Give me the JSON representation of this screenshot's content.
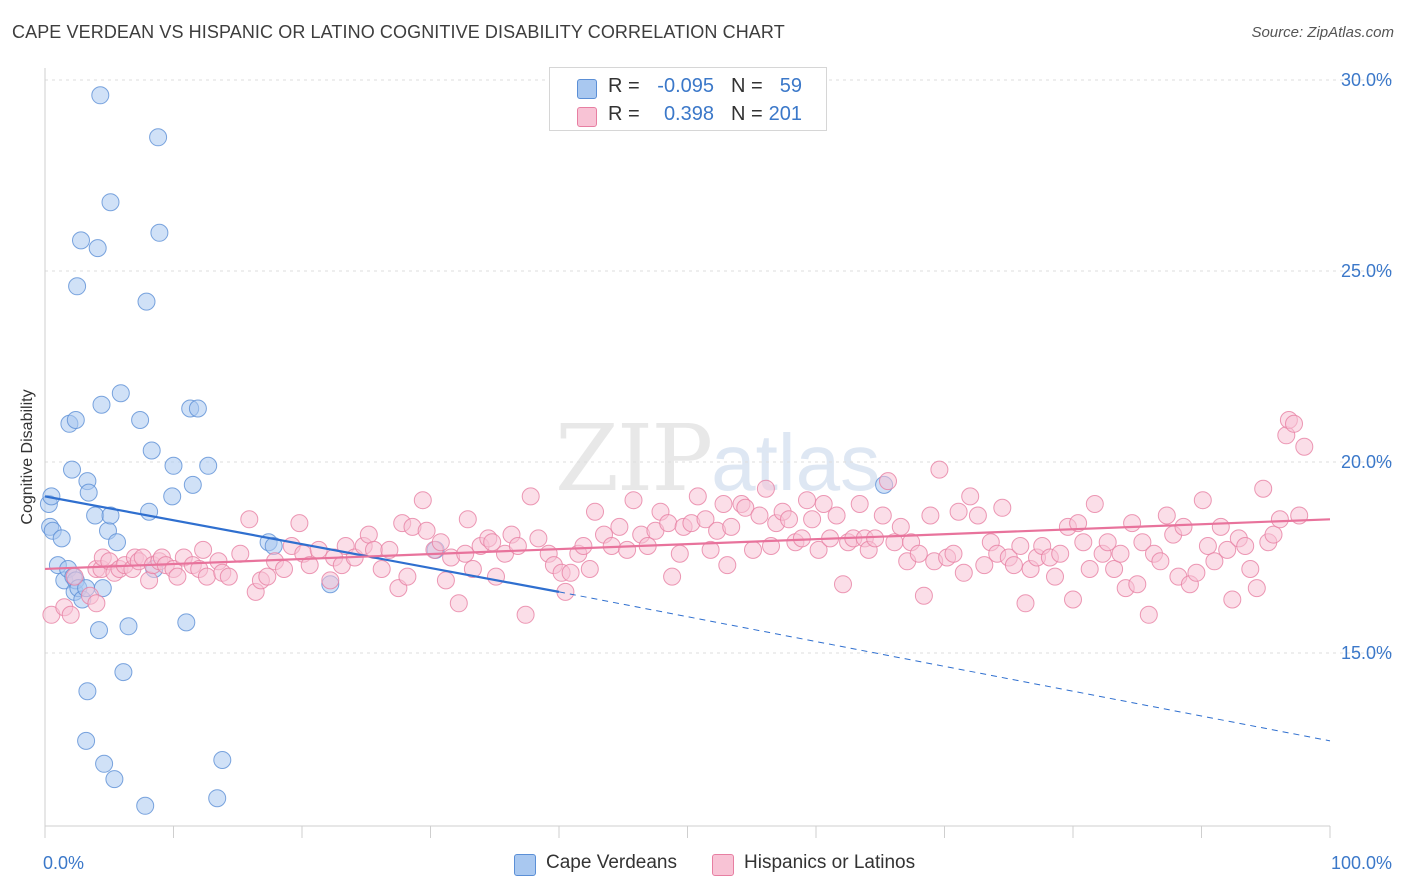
{
  "title": "CAPE VERDEAN VS HISPANIC OR LATINO COGNITIVE DISABILITY CORRELATION CHART",
  "source": "Source: ZipAtlas.com",
  "watermark": {
    "zip": "ZIP",
    "atlas": "atlas"
  },
  "legend": {
    "r_label": "R =",
    "n_label": "N =",
    "rows": [
      {
        "name": "Cape Verdeans",
        "r": "-0.095",
        "n": "59",
        "color": "#a9c8f0",
        "border": "#5b8fd6"
      },
      {
        "name": "Hispanics or Latinos",
        "r": "0.398",
        "n": "201",
        "color": "#f8c3d5",
        "border": "#e77fa2"
      }
    ]
  },
  "chart_data": {
    "type": "scatter",
    "title": "CAPE VERDEAN VS HISPANIC OR LATINO COGNITIVE DISABILITY CORRELATION CHART",
    "xlabel": "",
    "ylabel": "Cognitive Disability",
    "xlim": [
      0,
      100
    ],
    "ylim": [
      10,
      31
    ],
    "x_tick_labels": [
      {
        "value": 0,
        "label": "0.0%"
      },
      {
        "value": 100,
        "label": "100.0%"
      }
    ],
    "y_ticks": [
      {
        "value": 15,
        "label": "15.0%"
      },
      {
        "value": 20,
        "label": "20.0%"
      },
      {
        "value": 25,
        "label": "25.0%"
      },
      {
        "value": 30,
        "label": "30.0%"
      }
    ],
    "grid": "horizontal dashed",
    "series": [
      {
        "name": "Cape Verdeans",
        "color": "#a9c8f0",
        "stroke": "#5b8fd6",
        "trend": {
          "x0": 0,
          "y0": 19.1,
          "x1": 40,
          "y1": 16.6,
          "dash_to_x": 100,
          "dash_to_y": 12.7,
          "color": "#2f6fcf"
        },
        "points": [
          [
            0.3,
            18.9
          ],
          [
            0.4,
            18.3
          ],
          [
            0.5,
            19.1
          ],
          [
            0.6,
            18.2
          ],
          [
            1.0,
            17.3
          ],
          [
            1.3,
            18.0
          ],
          [
            1.5,
            16.9
          ],
          [
            1.8,
            17.2
          ],
          [
            1.9,
            21.0
          ],
          [
            2.1,
            19.8
          ],
          [
            2.2,
            17.0
          ],
          [
            2.5,
            24.6
          ],
          [
            2.3,
            16.6
          ],
          [
            2.4,
            16.9
          ],
          [
            2.4,
            21.1
          ],
          [
            2.6,
            16.7
          ],
          [
            2.8,
            25.8
          ],
          [
            2.9,
            16.4
          ],
          [
            3.3,
            19.5
          ],
          [
            3.4,
            19.2
          ],
          [
            3.2,
            16.7
          ],
          [
            3.3,
            14.0
          ],
          [
            3.2,
            12.7
          ],
          [
            3.9,
            18.6
          ],
          [
            4.1,
            25.6
          ],
          [
            4.2,
            15.6
          ],
          [
            4.3,
            29.6
          ],
          [
            4.4,
            21.5
          ],
          [
            4.5,
            16.7
          ],
          [
            4.6,
            12.1
          ],
          [
            4.9,
            18.2
          ],
          [
            5.1,
            18.6
          ],
          [
            5.1,
            26.8
          ],
          [
            5.4,
            11.7
          ],
          [
            5.6,
            17.9
          ],
          [
            5.9,
            21.8
          ],
          [
            6.1,
            14.5
          ],
          [
            6.5,
            15.7
          ],
          [
            7.4,
            21.1
          ],
          [
            7.8,
            11.0
          ],
          [
            7.9,
            24.2
          ],
          [
            8.1,
            18.7
          ],
          [
            8.3,
            20.3
          ],
          [
            8.5,
            17.2
          ],
          [
            8.8,
            28.5
          ],
          [
            8.9,
            26.0
          ],
          [
            9.9,
            19.1
          ],
          [
            10.0,
            19.9
          ],
          [
            11.0,
            15.8
          ],
          [
            11.3,
            21.4
          ],
          [
            11.5,
            19.4
          ],
          [
            11.9,
            21.4
          ],
          [
            12.7,
            19.9
          ],
          [
            13.4,
            11.2
          ],
          [
            13.8,
            12.2
          ],
          [
            17.4,
            17.9
          ],
          [
            17.8,
            17.8
          ],
          [
            22.2,
            16.8
          ],
          [
            30.4,
            17.7
          ],
          [
            65.3,
            19.4
          ]
        ]
      },
      {
        "name": "Hispanics or Latinos",
        "color": "#f8c3d5",
        "stroke": "#e77fa2",
        "trend": {
          "x0": 0,
          "y0": 17.2,
          "x1": 100,
          "y1": 18.5,
          "color": "#e8739c"
        },
        "points": [
          [
            0.5,
            16.0
          ],
          [
            1.5,
            16.2
          ],
          [
            2.0,
            16.0
          ],
          [
            2.3,
            17.0
          ],
          [
            3.5,
            16.5
          ],
          [
            4.0,
            16.3
          ],
          [
            4.0,
            17.2
          ],
          [
            4.4,
            17.2
          ],
          [
            4.5,
            17.5
          ],
          [
            5.0,
            17.4
          ],
          [
            5.4,
            17.1
          ],
          [
            5.8,
            17.2
          ],
          [
            6.2,
            17.3
          ],
          [
            6.8,
            17.2
          ],
          [
            7.0,
            17.5
          ],
          [
            7.3,
            17.4
          ],
          [
            7.6,
            17.5
          ],
          [
            8.1,
            16.9
          ],
          [
            8.4,
            17.3
          ],
          [
            8.9,
            17.4
          ],
          [
            9.1,
            17.5
          ],
          [
            9.4,
            17.3
          ],
          [
            10.0,
            17.2
          ],
          [
            10.3,
            17.0
          ],
          [
            10.8,
            17.5
          ],
          [
            11.5,
            17.3
          ],
          [
            12.0,
            17.2
          ],
          [
            12.3,
            17.7
          ],
          [
            12.6,
            17.0
          ],
          [
            13.5,
            17.4
          ],
          [
            13.8,
            17.1
          ],
          [
            14.3,
            17.0
          ],
          [
            15.2,
            17.6
          ],
          [
            15.9,
            18.5
          ],
          [
            16.4,
            16.6
          ],
          [
            16.8,
            16.9
          ],
          [
            17.3,
            17.0
          ],
          [
            17.9,
            17.4
          ],
          [
            18.6,
            17.2
          ],
          [
            19.2,
            17.8
          ],
          [
            19.8,
            18.4
          ],
          [
            20.1,
            17.6
          ],
          [
            20.6,
            17.3
          ],
          [
            21.3,
            17.7
          ],
          [
            22.2,
            16.9
          ],
          [
            22.5,
            17.5
          ],
          [
            23.1,
            17.3
          ],
          [
            23.4,
            17.8
          ],
          [
            24.1,
            17.5
          ],
          [
            24.8,
            17.8
          ],
          [
            25.2,
            18.1
          ],
          [
            25.6,
            17.7
          ],
          [
            26.2,
            17.2
          ],
          [
            26.8,
            17.7
          ],
          [
            27.5,
            16.7
          ],
          [
            27.8,
            18.4
          ],
          [
            28.2,
            17.0
          ],
          [
            28.6,
            18.3
          ],
          [
            29.4,
            19.0
          ],
          [
            29.7,
            18.2
          ],
          [
            30.3,
            17.7
          ],
          [
            30.8,
            17.9
          ],
          [
            31.2,
            16.9
          ],
          [
            31.6,
            17.5
          ],
          [
            32.2,
            16.3
          ],
          [
            32.7,
            17.6
          ],
          [
            32.9,
            18.5
          ],
          [
            33.3,
            17.2
          ],
          [
            33.9,
            17.8
          ],
          [
            34.5,
            18.0
          ],
          [
            34.8,
            17.9
          ],
          [
            35.1,
            17.0
          ],
          [
            35.8,
            17.6
          ],
          [
            36.3,
            18.1
          ],
          [
            36.8,
            17.8
          ],
          [
            37.4,
            16.0
          ],
          [
            37.8,
            19.1
          ],
          [
            38.4,
            18.0
          ],
          [
            39.2,
            17.6
          ],
          [
            39.6,
            17.3
          ],
          [
            40.2,
            17.1
          ],
          [
            40.5,
            16.6
          ],
          [
            40.9,
            17.1
          ],
          [
            41.5,
            17.6
          ],
          [
            41.9,
            17.8
          ],
          [
            42.4,
            17.2
          ],
          [
            42.8,
            18.7
          ],
          [
            43.5,
            18.1
          ],
          [
            44.1,
            17.8
          ],
          [
            44.7,
            18.3
          ],
          [
            45.3,
            17.7
          ],
          [
            45.8,
            19.0
          ],
          [
            46.4,
            18.1
          ],
          [
            46.9,
            17.8
          ],
          [
            47.5,
            18.2
          ],
          [
            47.9,
            18.7
          ],
          [
            48.5,
            18.4
          ],
          [
            48.8,
            17.0
          ],
          [
            49.4,
            17.6
          ],
          [
            49.7,
            18.3
          ],
          [
            50.3,
            18.4
          ],
          [
            50.8,
            19.1
          ],
          [
            51.4,
            18.5
          ],
          [
            51.8,
            17.7
          ],
          [
            52.3,
            18.2
          ],
          [
            52.8,
            18.9
          ],
          [
            53.1,
            17.3
          ],
          [
            53.4,
            18.3
          ],
          [
            54.2,
            18.9
          ],
          [
            54.5,
            18.8
          ],
          [
            55.1,
            17.7
          ],
          [
            55.6,
            18.6
          ],
          [
            56.1,
            19.3
          ],
          [
            56.5,
            17.8
          ],
          [
            56.9,
            18.4
          ],
          [
            57.4,
            18.7
          ],
          [
            57.9,
            18.5
          ],
          [
            58.4,
            17.9
          ],
          [
            58.9,
            18.0
          ],
          [
            59.3,
            19.0
          ],
          [
            59.7,
            18.5
          ],
          [
            60.2,
            17.7
          ],
          [
            60.6,
            18.9
          ],
          [
            61.1,
            18.0
          ],
          [
            61.6,
            18.6
          ],
          [
            62.1,
            16.8
          ],
          [
            62.5,
            17.9
          ],
          [
            62.9,
            18.0
          ],
          [
            63.4,
            18.9
          ],
          [
            63.8,
            18.0
          ],
          [
            64.1,
            17.7
          ],
          [
            64.6,
            18.0
          ],
          [
            65.2,
            18.6
          ],
          [
            65.6,
            19.5
          ],
          [
            66.1,
            17.9
          ],
          [
            66.6,
            18.3
          ],
          [
            67.1,
            17.4
          ],
          [
            67.4,
            17.9
          ],
          [
            68.0,
            17.6
          ],
          [
            68.4,
            16.5
          ],
          [
            68.9,
            18.6
          ],
          [
            69.2,
            17.4
          ],
          [
            69.6,
            19.8
          ],
          [
            70.2,
            17.5
          ],
          [
            70.7,
            17.6
          ],
          [
            71.1,
            18.7
          ],
          [
            71.5,
            17.1
          ],
          [
            72.0,
            19.1
          ],
          [
            72.6,
            18.6
          ],
          [
            73.1,
            17.3
          ],
          [
            73.6,
            17.9
          ],
          [
            74.1,
            17.6
          ],
          [
            74.5,
            18.8
          ],
          [
            75.0,
            17.5
          ],
          [
            75.4,
            17.3
          ],
          [
            75.9,
            17.8
          ],
          [
            76.3,
            16.3
          ],
          [
            76.7,
            17.2
          ],
          [
            77.2,
            17.5
          ],
          [
            77.6,
            17.8
          ],
          [
            78.2,
            17.5
          ],
          [
            78.6,
            17.0
          ],
          [
            79.0,
            17.6
          ],
          [
            79.6,
            18.3
          ],
          [
            80.0,
            16.4
          ],
          [
            80.4,
            18.4
          ],
          [
            80.8,
            17.9
          ],
          [
            81.3,
            17.2
          ],
          [
            81.7,
            18.9
          ],
          [
            82.3,
            17.6
          ],
          [
            82.7,
            17.9
          ],
          [
            83.2,
            17.2
          ],
          [
            83.7,
            17.6
          ],
          [
            84.1,
            16.7
          ],
          [
            84.6,
            18.4
          ],
          [
            85.0,
            16.8
          ],
          [
            85.4,
            17.9
          ],
          [
            85.9,
            16.0
          ],
          [
            86.3,
            17.6
          ],
          [
            86.8,
            17.4
          ],
          [
            87.3,
            18.6
          ],
          [
            87.8,
            18.1
          ],
          [
            88.2,
            17.0
          ],
          [
            88.6,
            18.3
          ],
          [
            89.1,
            16.8
          ],
          [
            89.6,
            17.1
          ],
          [
            90.1,
            19.0
          ],
          [
            90.5,
            17.8
          ],
          [
            91.0,
            17.4
          ],
          [
            91.5,
            18.3
          ],
          [
            92.0,
            17.7
          ],
          [
            92.4,
            16.4
          ],
          [
            92.9,
            18.0
          ],
          [
            93.4,
            17.8
          ],
          [
            93.8,
            17.2
          ],
          [
            94.3,
            16.7
          ],
          [
            94.8,
            19.3
          ],
          [
            95.2,
            17.9
          ],
          [
            95.6,
            18.1
          ],
          [
            96.1,
            18.5
          ],
          [
            96.6,
            20.7
          ],
          [
            96.8,
            21.1
          ],
          [
            97.2,
            21.0
          ],
          [
            97.6,
            18.6
          ],
          [
            98.0,
            20.4
          ]
        ]
      }
    ]
  }
}
